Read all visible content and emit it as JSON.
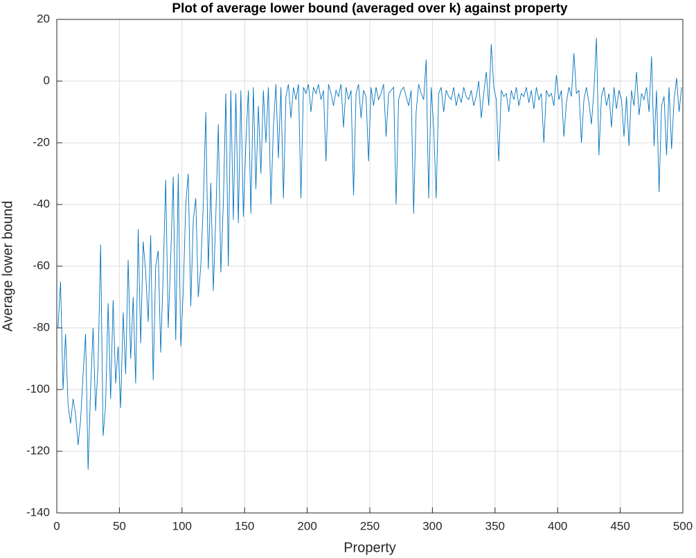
{
  "chart_data": {
    "type": "line",
    "title": "Plot of average lower bound (averaged over k) against property",
    "x_label": "Property",
    "y_label": "Average lower bound",
    "xlim": [
      0,
      500
    ],
    "ylim": [
      -140,
      20
    ],
    "xticks": [
      0,
      50,
      100,
      150,
      200,
      250,
      300,
      350,
      400,
      450,
      500
    ],
    "yticks": [
      -140,
      -120,
      -100,
      -80,
      -60,
      -40,
      -20,
      0,
      20
    ],
    "grid": true,
    "x": [
      1,
      3,
      5,
      7,
      9,
      11,
      13,
      15,
      17,
      19,
      21,
      23,
      25,
      27,
      29,
      31,
      33,
      35,
      37,
      39,
      41,
      43,
      45,
      47,
      49,
      51,
      53,
      55,
      57,
      59,
      61,
      63,
      65,
      67,
      69,
      71,
      73,
      75,
      77,
      79,
      81,
      83,
      85,
      87,
      89,
      91,
      93,
      95,
      97,
      99,
      101,
      103,
      105,
      107,
      109,
      111,
      113,
      115,
      117,
      119,
      121,
      123,
      125,
      127,
      129,
      131,
      133,
      135,
      137,
      139,
      141,
      143,
      145,
      147,
      149,
      151,
      153,
      155,
      157,
      159,
      161,
      163,
      165,
      167,
      169,
      171,
      173,
      175,
      177,
      179,
      181,
      183,
      185,
      187,
      189,
      191,
      193,
      195,
      197,
      199,
      201,
      203,
      205,
      207,
      209,
      211,
      213,
      215,
      217,
      219,
      221,
      223,
      225,
      227,
      229,
      231,
      233,
      235,
      237,
      239,
      241,
      243,
      245,
      247,
      249,
      251,
      253,
      255,
      257,
      259,
      261,
      263,
      265,
      267,
      269,
      271,
      273,
      275,
      277,
      279,
      281,
      283,
      285,
      287,
      289,
      291,
      293,
      295,
      297,
      299,
      301,
      303,
      305,
      307,
      309,
      311,
      313,
      315,
      317,
      319,
      321,
      323,
      325,
      327,
      329,
      331,
      333,
      335,
      337,
      339,
      341,
      343,
      345,
      347,
      349,
      351,
      353,
      355,
      357,
      359,
      361,
      363,
      365,
      367,
      369,
      371,
      373,
      375,
      377,
      379,
      381,
      383,
      385,
      387,
      389,
      391,
      393,
      395,
      397,
      399,
      401,
      403,
      405,
      407,
      409,
      411,
      413,
      415,
      417,
      419,
      421,
      423,
      425,
      427,
      429,
      431,
      433,
      435,
      437,
      439,
      441,
      443,
      445,
      447,
      449,
      451,
      453,
      455,
      457,
      459,
      461,
      463,
      465,
      467,
      469,
      471,
      473,
      475,
      477,
      479,
      481,
      483,
      485,
      487,
      489,
      491,
      493,
      495,
      497,
      499
    ],
    "series": [
      {
        "color": "#0072bd",
        "values": [
          -80,
          -65,
          -100,
          -82,
          -105,
          -111,
          -103,
          -108,
          -118,
          -110,
          -95,
          -82,
          -126,
          -100,
          -80,
          -107,
          -92,
          -53,
          -115,
          -105,
          -72,
          -103,
          -71,
          -98,
          -86,
          -106,
          -75,
          -95,
          -58,
          -90,
          -70,
          -98,
          -48,
          -85,
          -52,
          -62,
          -78,
          -50,
          -97,
          -60,
          -55,
          -88,
          -62,
          -32,
          -80,
          -57,
          -31,
          -84,
          -30,
          -86,
          -68,
          -40,
          -30,
          -73,
          -45,
          -38,
          -70,
          -60,
          -40,
          -10,
          -61,
          -33,
          -68,
          -44,
          -14,
          -62,
          -40,
          -4,
          -60,
          -3,
          -45,
          -4,
          -46,
          -3,
          -44,
          -20,
          -3,
          -43,
          -2,
          -35,
          -8,
          -30,
          -3,
          -20,
          -2,
          -40,
          -15,
          -1,
          -25,
          -2,
          -38,
          -5,
          -1,
          -12,
          -2,
          -6,
          -1,
          -38,
          -2,
          -4,
          -1,
          -10,
          -2,
          -4,
          -1,
          -6,
          -3,
          -26,
          -1,
          -4,
          -8,
          -3,
          -5,
          -1,
          -15,
          -2,
          -6,
          -3,
          -37,
          -4,
          -1,
          -12,
          -3,
          -5,
          -26,
          -2,
          -8,
          -2,
          -6,
          -4,
          -1,
          -18,
          -4,
          -3,
          -2,
          -40,
          -6,
          -3,
          -2,
          -5,
          -8,
          -3,
          -43,
          -10,
          -1,
          -4,
          -6,
          7,
          -38,
          -2,
          -15,
          -38,
          -4,
          -2,
          -10,
          -3,
          -5,
          -6,
          -2,
          -8,
          -4,
          -7,
          -2,
          -5,
          -6,
          -3,
          -8,
          -5,
          0,
          -12,
          -4,
          3,
          -8,
          12,
          -2,
          -6,
          -26,
          -3,
          -5,
          -4,
          -10,
          -3,
          -6,
          -2,
          -8,
          -4,
          -5,
          -2,
          -7,
          -3,
          -9,
          -2,
          -6,
          -4,
          -20,
          -3,
          -5,
          -4,
          -8,
          2,
          -6,
          -3,
          -18,
          -7,
          -2,
          -5,
          9,
          -4,
          -3,
          -20,
          -6,
          -2,
          -7,
          -14,
          -3,
          14,
          -24,
          -5,
          -2,
          -8,
          -4,
          -15,
          -2,
          -9,
          -3,
          -6,
          -18,
          -5,
          -21,
          -3,
          -8,
          3,
          -11,
          -4,
          -6,
          -2,
          -10,
          8,
          -21,
          -3,
          -36,
          -8,
          -5,
          -24,
          -2,
          -22,
          -6,
          1,
          -10,
          -2
        ]
      }
    ]
  }
}
